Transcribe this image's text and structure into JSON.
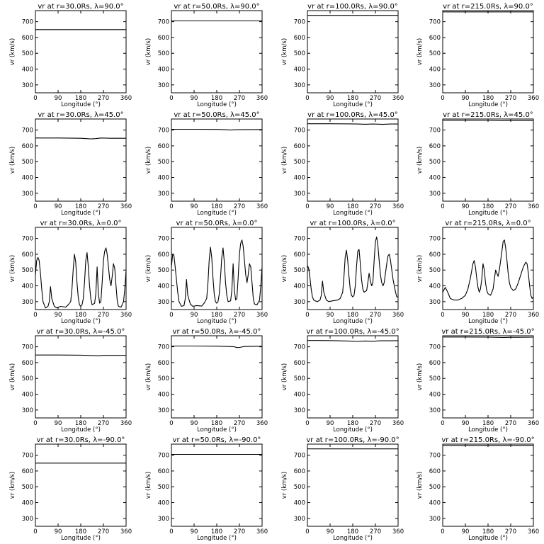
{
  "chart_data": {
    "type": "line",
    "layout": "5 rows x 4 columns grid",
    "xlabel": "Longitude (°)",
    "ylabel": "vr (km/s)",
    "xlim": [
      0,
      360
    ],
    "ylim": [
      250,
      770
    ],
    "xticks": [
      0,
      90,
      180,
      270,
      360
    ],
    "yticks": [
      300,
      400,
      500,
      600,
      700
    ],
    "grid": false,
    "legend": "none",
    "panels": [
      {
        "title": "vr at r=30.0Rs, λ=90.0°",
        "x": [
          0,
          360
        ],
        "y": [
          650,
          650
        ]
      },
      {
        "title": "vr at r=50.0Rs, λ=90.0°",
        "x": [
          0,
          360
        ],
        "y": [
          705,
          705
        ]
      },
      {
        "title": "vr at r=100.0Rs, λ=90.0°",
        "x": [
          0,
          360
        ],
        "y": [
          740,
          740
        ]
      },
      {
        "title": "vr at r=215.0Rs, λ=90.0°",
        "x": [
          0,
          360
        ],
        "y": [
          762,
          762
        ]
      },
      {
        "title": "vr at r=30.0Rs, λ=45.0°",
        "x": [
          0,
          90,
          180,
          220,
          240,
          260,
          300,
          360
        ],
        "y": [
          650,
          650,
          648,
          644,
          646,
          650,
          648,
          648
        ]
      },
      {
        "title": "vr at r=50.0Rs, λ=45.0°",
        "x": [
          0,
          90,
          180,
          220,
          235,
          250,
          300,
          360
        ],
        "y": [
          705,
          705,
          704,
          702,
          700,
          702,
          703,
          703
        ]
      },
      {
        "title": "vr at r=100.0Rs, λ=45.0°",
        "x": [
          0,
          90,
          180,
          230,
          260,
          300,
          330,
          360
        ],
        "y": [
          740,
          740,
          739,
          737,
          738,
          736,
          738,
          738
        ]
      },
      {
        "title": "vr at r=215.0Rs, λ=45.0°",
        "x": [
          0,
          90,
          180,
          230,
          270,
          330,
          360
        ],
        "y": [
          762,
          762,
          761,
          759,
          760,
          760,
          760
        ]
      },
      {
        "title": "vr at r=30.0Rs, λ=0.0°",
        "x": [
          0,
          5,
          10,
          15,
          20,
          25,
          30,
          40,
          50,
          55,
          60,
          65,
          75,
          85,
          100,
          120,
          130,
          140,
          145,
          150,
          155,
          160,
          165,
          170,
          175,
          180,
          185,
          190,
          195,
          200,
          205,
          210,
          215,
          220,
          225,
          235,
          240,
          245,
          250,
          255,
          260,
          265,
          270,
          275,
          280,
          285,
          290,
          295,
          300,
          305,
          310,
          315,
          320,
          325,
          330,
          340,
          350,
          355,
          360
        ],
        "y": [
          470,
          560,
          580,
          560,
          480,
          380,
          300,
          260,
          270,
          300,
          395,
          320,
          270,
          260,
          270,
          265,
          280,
          300,
          380,
          500,
          600,
          550,
          420,
          330,
          280,
          270,
          280,
          320,
          420,
          560,
          610,
          520,
          400,
          320,
          280,
          290,
          350,
          520,
          350,
          290,
          300,
          420,
          560,
          620,
          640,
          600,
          520,
          440,
          400,
          460,
          540,
          510,
          400,
          300,
          270,
          265,
          300,
          380,
          500
        ]
      },
      {
        "title": "vr at r=50.0Rs, λ=0.0°",
        "x": [
          0,
          5,
          10,
          15,
          20,
          25,
          30,
          40,
          50,
          55,
          60,
          65,
          75,
          85,
          100,
          120,
          130,
          140,
          145,
          150,
          155,
          160,
          165,
          170,
          175,
          180,
          185,
          190,
          195,
          200,
          205,
          210,
          215,
          220,
          225,
          235,
          240,
          245,
          250,
          255,
          260,
          265,
          270,
          275,
          280,
          285,
          290,
          295,
          300,
          305,
          310,
          315,
          320,
          325,
          330,
          340,
          350,
          355,
          360
        ],
        "y": [
          520,
          600,
          590,
          520,
          440,
          360,
          300,
          270,
          275,
          320,
          440,
          340,
          285,
          270,
          275,
          272,
          290,
          320,
          420,
          560,
          645,
          580,
          450,
          350,
          300,
          290,
          300,
          350,
          450,
          580,
          640,
          550,
          420,
          340,
          300,
          305,
          370,
          540,
          370,
          310,
          320,
          450,
          600,
          670,
          690,
          650,
          560,
          470,
          420,
          470,
          540,
          520,
          420,
          320,
          285,
          280,
          310,
          400,
          520
        ]
      },
      {
        "title": "vr at r=100.0Rs, λ=0.0°",
        "x": [
          0,
          5,
          10,
          15,
          20,
          25,
          30,
          40,
          50,
          55,
          60,
          65,
          75,
          85,
          100,
          120,
          130,
          140,
          145,
          150,
          155,
          160,
          165,
          170,
          175,
          180,
          185,
          190,
          195,
          200,
          205,
          210,
          215,
          220,
          225,
          235,
          240,
          245,
          250,
          255,
          260,
          265,
          270,
          275,
          280,
          285,
          290,
          295,
          300,
          305,
          310,
          315,
          320,
          325,
          330,
          340,
          350,
          355,
          360
        ],
        "y": [
          530,
          510,
          450,
          380,
          330,
          310,
          305,
          300,
          310,
          340,
          430,
          360,
          310,
          300,
          305,
          310,
          320,
          360,
          460,
          580,
          625,
          560,
          460,
          380,
          340,
          330,
          340,
          400,
          520,
          620,
          630,
          540,
          440,
          380,
          360,
          370,
          420,
          480,
          430,
          400,
          420,
          560,
          680,
          710,
          650,
          560,
          470,
          420,
          400,
          420,
          480,
          540,
          590,
          600,
          560,
          440,
          360,
          330,
          330
        ]
      },
      {
        "title": "vr at r=215.0Rs, λ=0.0°",
        "x": [
          0,
          10,
          20,
          30,
          45,
          60,
          75,
          90,
          100,
          110,
          120,
          125,
          130,
          135,
          140,
          145,
          150,
          155,
          160,
          165,
          170,
          175,
          180,
          190,
          200,
          205,
          210,
          215,
          220,
          225,
          230,
          235,
          240,
          245,
          250,
          255,
          260,
          265,
          270,
          280,
          290,
          300,
          310,
          320,
          330,
          335,
          340,
          345,
          350,
          355,
          360
        ],
        "y": [
          360,
          390,
          360,
          320,
          310,
          310,
          320,
          340,
          380,
          450,
          540,
          560,
          520,
          450,
          390,
          360,
          380,
          440,
          540,
          500,
          420,
          370,
          350,
          340,
          380,
          440,
          500,
          480,
          460,
          500,
          560,
          620,
          680,
          690,
          640,
          560,
          480,
          420,
          390,
          370,
          380,
          420,
          470,
          520,
          550,
          540,
          480,
          400,
          340,
          320,
          330
        ]
      },
      {
        "title": "vr at r=30.0Rs, λ=-45.0°",
        "x": [
          0,
          90,
          180,
          230,
          250,
          270,
          300,
          360
        ],
        "y": [
          648,
          648,
          647,
          645,
          643,
          646,
          646,
          646
        ]
      },
      {
        "title": "vr at r=50.0Rs, λ=-45.0°",
        "x": [
          0,
          90,
          180,
          230,
          250,
          260,
          270,
          290,
          330,
          360
        ],
        "y": [
          705,
          705,
          704,
          702,
          700,
          695,
          696,
          702,
          703,
          703
        ]
      },
      {
        "title": "vr at r=100.0Rs, λ=-45.0°",
        "x": [
          0,
          60,
          120,
          170,
          200,
          230,
          260,
          290,
          330,
          360
        ],
        "y": [
          740,
          740,
          738,
          736,
          734,
          737,
          735,
          738,
          738,
          739
        ]
      },
      {
        "title": "vr at r=215.0Rs, λ=-45.0°",
        "x": [
          0,
          90,
          180,
          240,
          270,
          300,
          360
        ],
        "y": [
          762,
          762,
          761,
          759,
          760,
          760,
          761
        ]
      },
      {
        "title": "vr at r=30.0Rs, λ=-90.0°",
        "x": [
          0,
          360
        ],
        "y": [
          650,
          650
        ]
      },
      {
        "title": "vr at r=50.0Rs, λ=-90.0°",
        "x": [
          0,
          360
        ],
        "y": [
          705,
          705
        ]
      },
      {
        "title": "vr at r=100.0Rs, λ=-90.0°",
        "x": [
          0,
          360
        ],
        "y": [
          740,
          740
        ]
      },
      {
        "title": "vr at r=215.0Rs, λ=-90.0°",
        "x": [
          0,
          360
        ],
        "y": [
          762,
          762
        ]
      }
    ]
  }
}
